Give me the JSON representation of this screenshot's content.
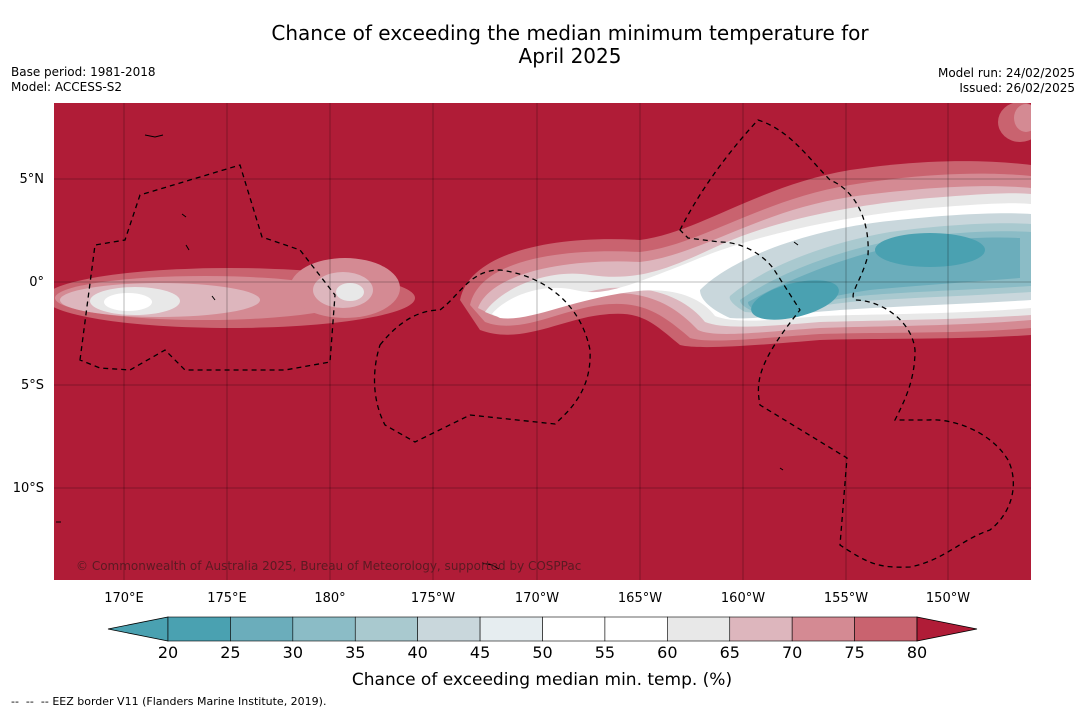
{
  "title_line1": "Chance of exceeding the median minimum temperature for",
  "title_line2": "April 2025",
  "base_period": "Base period: 1981-2018",
  "model": "Model: ACCESS-S2",
  "model_run": "Model run: 24/02/2025",
  "issued": "Issued: 26/02/2025",
  "lon_ticks": [
    "170°E",
    "175°E",
    "180°",
    "175°W",
    "170°W",
    "165°W",
    "160°W",
    "155°W",
    "150°W"
  ],
  "lat_ticks": [
    "5°N",
    "0°",
    "5°S",
    "10°S"
  ],
  "copyright": "© Commonwealth of Australia 2025, Bureau of Meteorology, supported by COSPPac",
  "colorbar": {
    "ticks": [
      "20",
      "25",
      "30",
      "35",
      "40",
      "45",
      "50",
      "55",
      "60",
      "65",
      "70",
      "75",
      "80"
    ],
    "label": "Chance of exceeding median min. temp. (%)",
    "colors": [
      "#4aa1b1",
      "#6badbb",
      "#8bbcc6",
      "#a9c9cf",
      "#c9d7dc",
      "#e6edf0",
      "#ffffff",
      "#ffffff",
      "#e8e8e8",
      "#ddb6bd",
      "#d48a93",
      "#c9636f",
      "#b93e4f"
    ],
    "under_color": "#4aa1b1",
    "over_color": "#b01c37"
  },
  "map_background_color": "#b01c37",
  "footer_text": "EEZ border V11 (Flanders Marine Institute, 2019)."
}
